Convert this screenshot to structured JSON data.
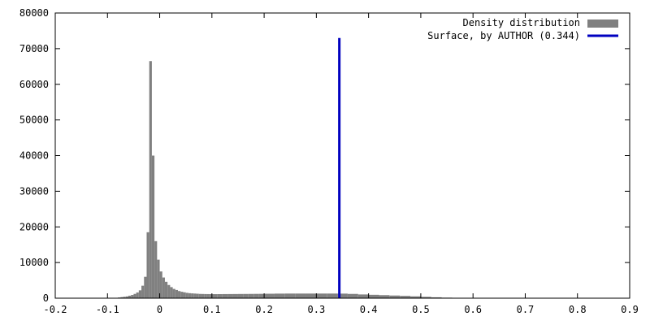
{
  "chart_data": {
    "type": "bar",
    "xlim": [
      -0.2,
      0.9
    ],
    "ylim": [
      0,
      80000
    ],
    "xticks": [
      -0.2,
      -0.1,
      0,
      0.1,
      0.2,
      0.3,
      0.4,
      0.5,
      0.6,
      0.7,
      0.8,
      0.9
    ],
    "yticks": [
      0,
      10000,
      20000,
      30000,
      40000,
      50000,
      60000,
      70000,
      80000
    ],
    "xtick_labels": [
      "-0.2",
      "-0.1",
      "0",
      "0.1",
      "0.2",
      "0.3",
      "0.4",
      "0.5",
      "0.6",
      "0.7",
      "0.8",
      "0.9"
    ],
    "ytick_labels": [
      "0",
      "10000",
      "20000",
      "30000",
      "40000",
      "50000",
      "60000",
      "70000",
      "80000"
    ],
    "grid": false,
    "legend_position": "top-right",
    "series": [
      {
        "name": "Density distribution",
        "type": "histogram",
        "color": "#808080",
        "bin_width": 0.005,
        "bins_start": [
          -0.08,
          -0.075,
          -0.07,
          -0.065,
          -0.06,
          -0.055,
          -0.05,
          -0.045,
          -0.04,
          -0.035,
          -0.03,
          -0.025,
          -0.02,
          -0.015,
          -0.01,
          -0.005,
          0.0,
          0.005,
          0.01,
          0.015,
          0.02,
          0.025,
          0.03,
          0.035,
          0.04,
          0.045,
          0.05,
          0.055,
          0.06,
          0.065,
          0.07,
          0.075,
          0.08,
          0.085,
          0.09,
          0.095,
          0.1,
          0.11,
          0.12,
          0.13,
          0.14,
          0.15,
          0.16,
          0.17,
          0.18,
          0.19,
          0.2,
          0.22,
          0.24,
          0.26,
          0.28,
          0.3,
          0.32,
          0.34,
          0.36,
          0.38,
          0.4,
          0.42,
          0.44,
          0.46,
          0.48,
          0.5,
          0.52,
          0.54,
          0.56,
          0.58
        ],
        "bins_width": [
          0.005,
          0.005,
          0.005,
          0.005,
          0.005,
          0.005,
          0.005,
          0.005,
          0.005,
          0.005,
          0.005,
          0.005,
          0.005,
          0.005,
          0.005,
          0.005,
          0.005,
          0.005,
          0.005,
          0.005,
          0.005,
          0.005,
          0.005,
          0.005,
          0.005,
          0.005,
          0.005,
          0.005,
          0.005,
          0.005,
          0.005,
          0.005,
          0.005,
          0.005,
          0.005,
          0.005,
          0.01,
          0.01,
          0.01,
          0.01,
          0.01,
          0.01,
          0.01,
          0.01,
          0.01,
          0.01,
          0.02,
          0.02,
          0.02,
          0.02,
          0.02,
          0.02,
          0.02,
          0.02,
          0.02,
          0.02,
          0.02,
          0.02,
          0.02,
          0.02,
          0.02,
          0.02,
          0.02,
          0.02,
          0.02,
          0.02
        ],
        "values": [
          200,
          300,
          400,
          500,
          700,
          900,
          1200,
          1600,
          2200,
          3500,
          6000,
          18500,
          66500,
          40000,
          16000,
          10800,
          7500,
          5800,
          4600,
          3700,
          3100,
          2600,
          2300,
          2000,
          1800,
          1650,
          1500,
          1400,
          1350,
          1300,
          1250,
          1200,
          1180,
          1160,
          1150,
          1140,
          1130,
          1140,
          1150,
          1160,
          1170,
          1180,
          1190,
          1200,
          1210,
          1220,
          1250,
          1280,
          1300,
          1300,
          1300,
          1300,
          1300,
          1280,
          1200,
          1050,
          950,
          850,
          750,
          650,
          520,
          380,
          250,
          150,
          80,
          40
        ]
      },
      {
        "name": "Surface, by AUTHOR (0.344)",
        "type": "vline",
        "color": "#0000c0",
        "x": 0.344,
        "y": 73000
      }
    ]
  }
}
